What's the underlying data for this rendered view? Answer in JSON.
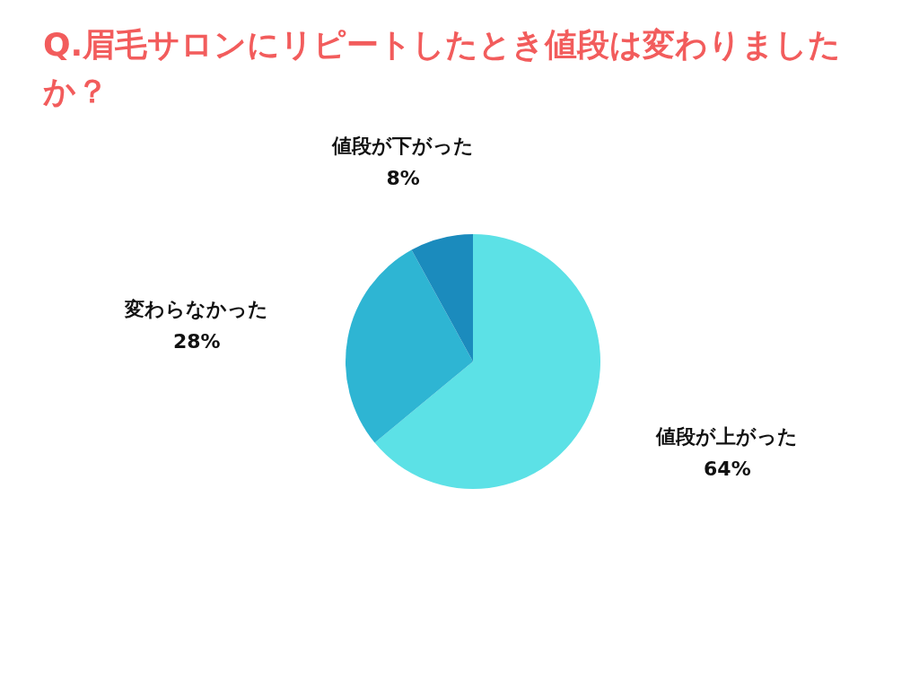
{
  "chart_data": {
    "type": "pie",
    "title": "Q.眉毛サロンにリピートしたとき値段は変わりましたか？",
    "categories": [
      "値段が上がった",
      "変わらなかった",
      "値段が下がった"
    ],
    "values": [
      64,
      28,
      8
    ],
    "value_labels": [
      "64%",
      "28%",
      "8%"
    ],
    "colors": [
      "#5ce1e6",
      "#2eb5d3",
      "#1b8bbd"
    ]
  }
}
